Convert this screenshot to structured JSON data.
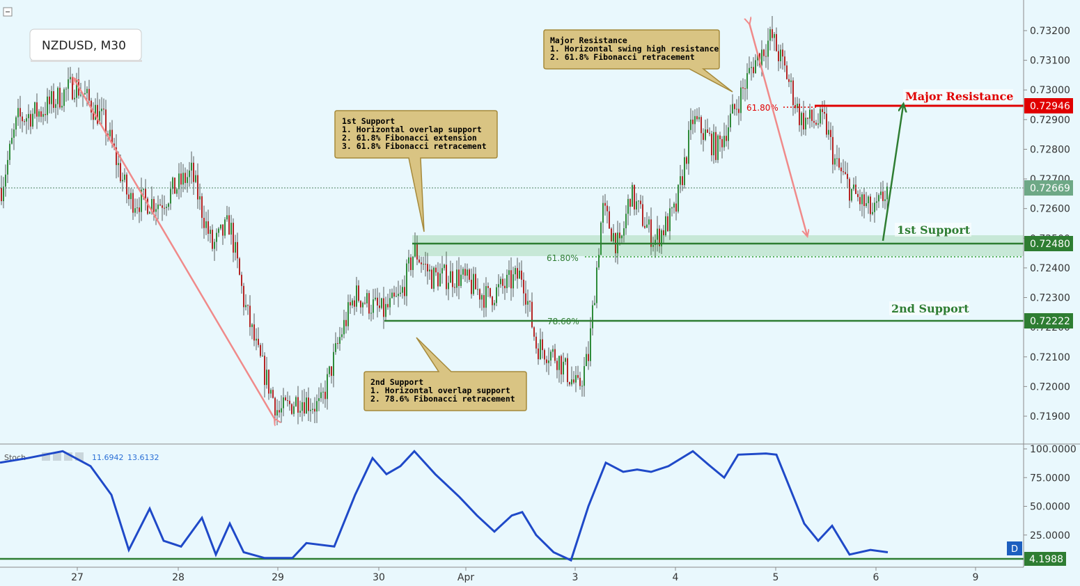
{
  "symbol_label": "NZDUSD, M30",
  "price_axis": {
    "ticks": [
      "0.73200",
      "0.73100",
      "0.73000",
      "0.72900",
      "0.72800",
      "0.72700",
      "0.72600",
      "0.72500",
      "0.72400",
      "0.72300",
      "0.72200",
      "0.72100",
      "0.72000",
      "0.71900"
    ],
    "range": [
      0.7183,
      0.7327
    ]
  },
  "price_badges": {
    "resistance": {
      "value": "0.72946",
      "color": "#e00000"
    },
    "current": {
      "value": "0.72669",
      "color": "#6ea886"
    },
    "support1": {
      "value": "0.72480",
      "color": "#2e7d32"
    },
    "support2": {
      "value": "0.72222",
      "color": "#2e7d32"
    }
  },
  "level_labels": {
    "major_resistance": "Major Resistance",
    "first_support": "1st Support",
    "second_support": "2nd Support",
    "fib_resistance": "61.80%",
    "fib_support": "61.80%",
    "fib_second": "78.60%"
  },
  "annotations": {
    "resistance_box": [
      "Major Resistance",
      "1. Horizontal swing high resistance",
      "2. 61.8% Fibonacci retracement"
    ],
    "support1_box": [
      "1st Support",
      "1. Horizontal overlap support",
      "2. 61.8% Fibonacci extension",
      "3. 61.8% Fibonacci retracement"
    ],
    "support2_box": [
      "2nd Support",
      "1. Horizontal overlap support",
      "2. 78.6% Fibonacci retracement"
    ]
  },
  "time_axis": {
    "labels": [
      "27",
      "28",
      "29",
      "30",
      "Apr",
      "3",
      "4",
      "5",
      "6",
      "9"
    ]
  },
  "stoch": {
    "title": "Stoch",
    "value1": "11.6942",
    "value2": "13.6132",
    "ticks": [
      "100.0000",
      "75.0000",
      "50.0000",
      "25.0000"
    ],
    "level_value": "4.1988",
    "scale_button": "D"
  },
  "chart_data": {
    "type": "candlestick",
    "title": "NZDUSD, M30",
    "x_labels": [
      "27",
      "28",
      "29",
      "30",
      "Apr",
      "3",
      "4",
      "5",
      "6",
      "9"
    ],
    "ylim": [
      0.7183,
      0.7327
    ],
    "levels": {
      "major_resistance": 0.72946,
      "current": 0.72669,
      "first_support": 0.7248,
      "second_support": 0.72222
    },
    "price_path": [
      [
        0,
        0.7265
      ],
      [
        25,
        0.729
      ],
      [
        60,
        0.7293
      ],
      [
        108,
        0.7302
      ],
      [
        150,
        0.7289
      ],
      [
        185,
        0.7263
      ],
      [
        230,
        0.7262
      ],
      [
        275,
        0.7272
      ],
      [
        305,
        0.7247
      ],
      [
        330,
        0.7255
      ],
      [
        350,
        0.7229
      ],
      [
        370,
        0.7211
      ],
      [
        400,
        0.7191
      ],
      [
        430,
        0.7196
      ],
      [
        460,
        0.7193
      ],
      [
        490,
        0.7218
      ],
      [
        510,
        0.7231
      ],
      [
        550,
        0.7225
      ],
      [
        575,
        0.723
      ],
      [
        595,
        0.7246
      ],
      [
        620,
        0.7237
      ],
      [
        660,
        0.7237
      ],
      [
        700,
        0.723
      ],
      [
        750,
        0.7238
      ],
      [
        770,
        0.7214
      ],
      [
        800,
        0.721
      ],
      [
        830,
        0.7199
      ],
      [
        845,
        0.721
      ],
      [
        865,
        0.726
      ],
      [
        890,
        0.7246
      ],
      [
        905,
        0.7265
      ],
      [
        940,
        0.7249
      ],
      [
        970,
        0.7259
      ],
      [
        995,
        0.729
      ],
      [
        1030,
        0.728
      ],
      [
        1060,
        0.7296
      ],
      [
        1080,
        0.7308
      ],
      [
        1108,
        0.7318
      ],
      [
        1130,
        0.7305
      ],
      [
        1150,
        0.729
      ],
      [
        1185,
        0.7289
      ],
      [
        1200,
        0.7275
      ],
      [
        1225,
        0.7265
      ],
      [
        1255,
        0.7258
      ],
      [
        1275,
        0.7267
      ]
    ],
    "stoch_path": [
      [
        0,
        88
      ],
      [
        40,
        92
      ],
      [
        90,
        98
      ],
      [
        130,
        85
      ],
      [
        160,
        60
      ],
      [
        185,
        12
      ],
      [
        215,
        48
      ],
      [
        235,
        20
      ],
      [
        260,
        15
      ],
      [
        290,
        40
      ],
      [
        310,
        8
      ],
      [
        330,
        35
      ],
      [
        350,
        10
      ],
      [
        380,
        5
      ],
      [
        420,
        5
      ],
      [
        440,
        18
      ],
      [
        480,
        15
      ],
      [
        510,
        60
      ],
      [
        535,
        92
      ],
      [
        555,
        78
      ],
      [
        575,
        85
      ],
      [
        595,
        98
      ],
      [
        625,
        78
      ],
      [
        660,
        58
      ],
      [
        685,
        42
      ],
      [
        710,
        28
      ],
      [
        735,
        42
      ],
      [
        750,
        45
      ],
      [
        770,
        25
      ],
      [
        795,
        10
      ],
      [
        820,
        3
      ],
      [
        845,
        50
      ],
      [
        870,
        88
      ],
      [
        895,
        80
      ],
      [
        915,
        82
      ],
      [
        935,
        80
      ],
      [
        960,
        85
      ],
      [
        995,
        98
      ],
      [
        1020,
        85
      ],
      [
        1040,
        75
      ],
      [
        1060,
        95
      ],
      [
        1100,
        96
      ],
      [
        1115,
        95
      ],
      [
        1135,
        65
      ],
      [
        1155,
        35
      ],
      [
        1175,
        20
      ],
      [
        1195,
        33
      ],
      [
        1220,
        8
      ],
      [
        1250,
        12
      ],
      [
        1275,
        10
      ]
    ]
  }
}
